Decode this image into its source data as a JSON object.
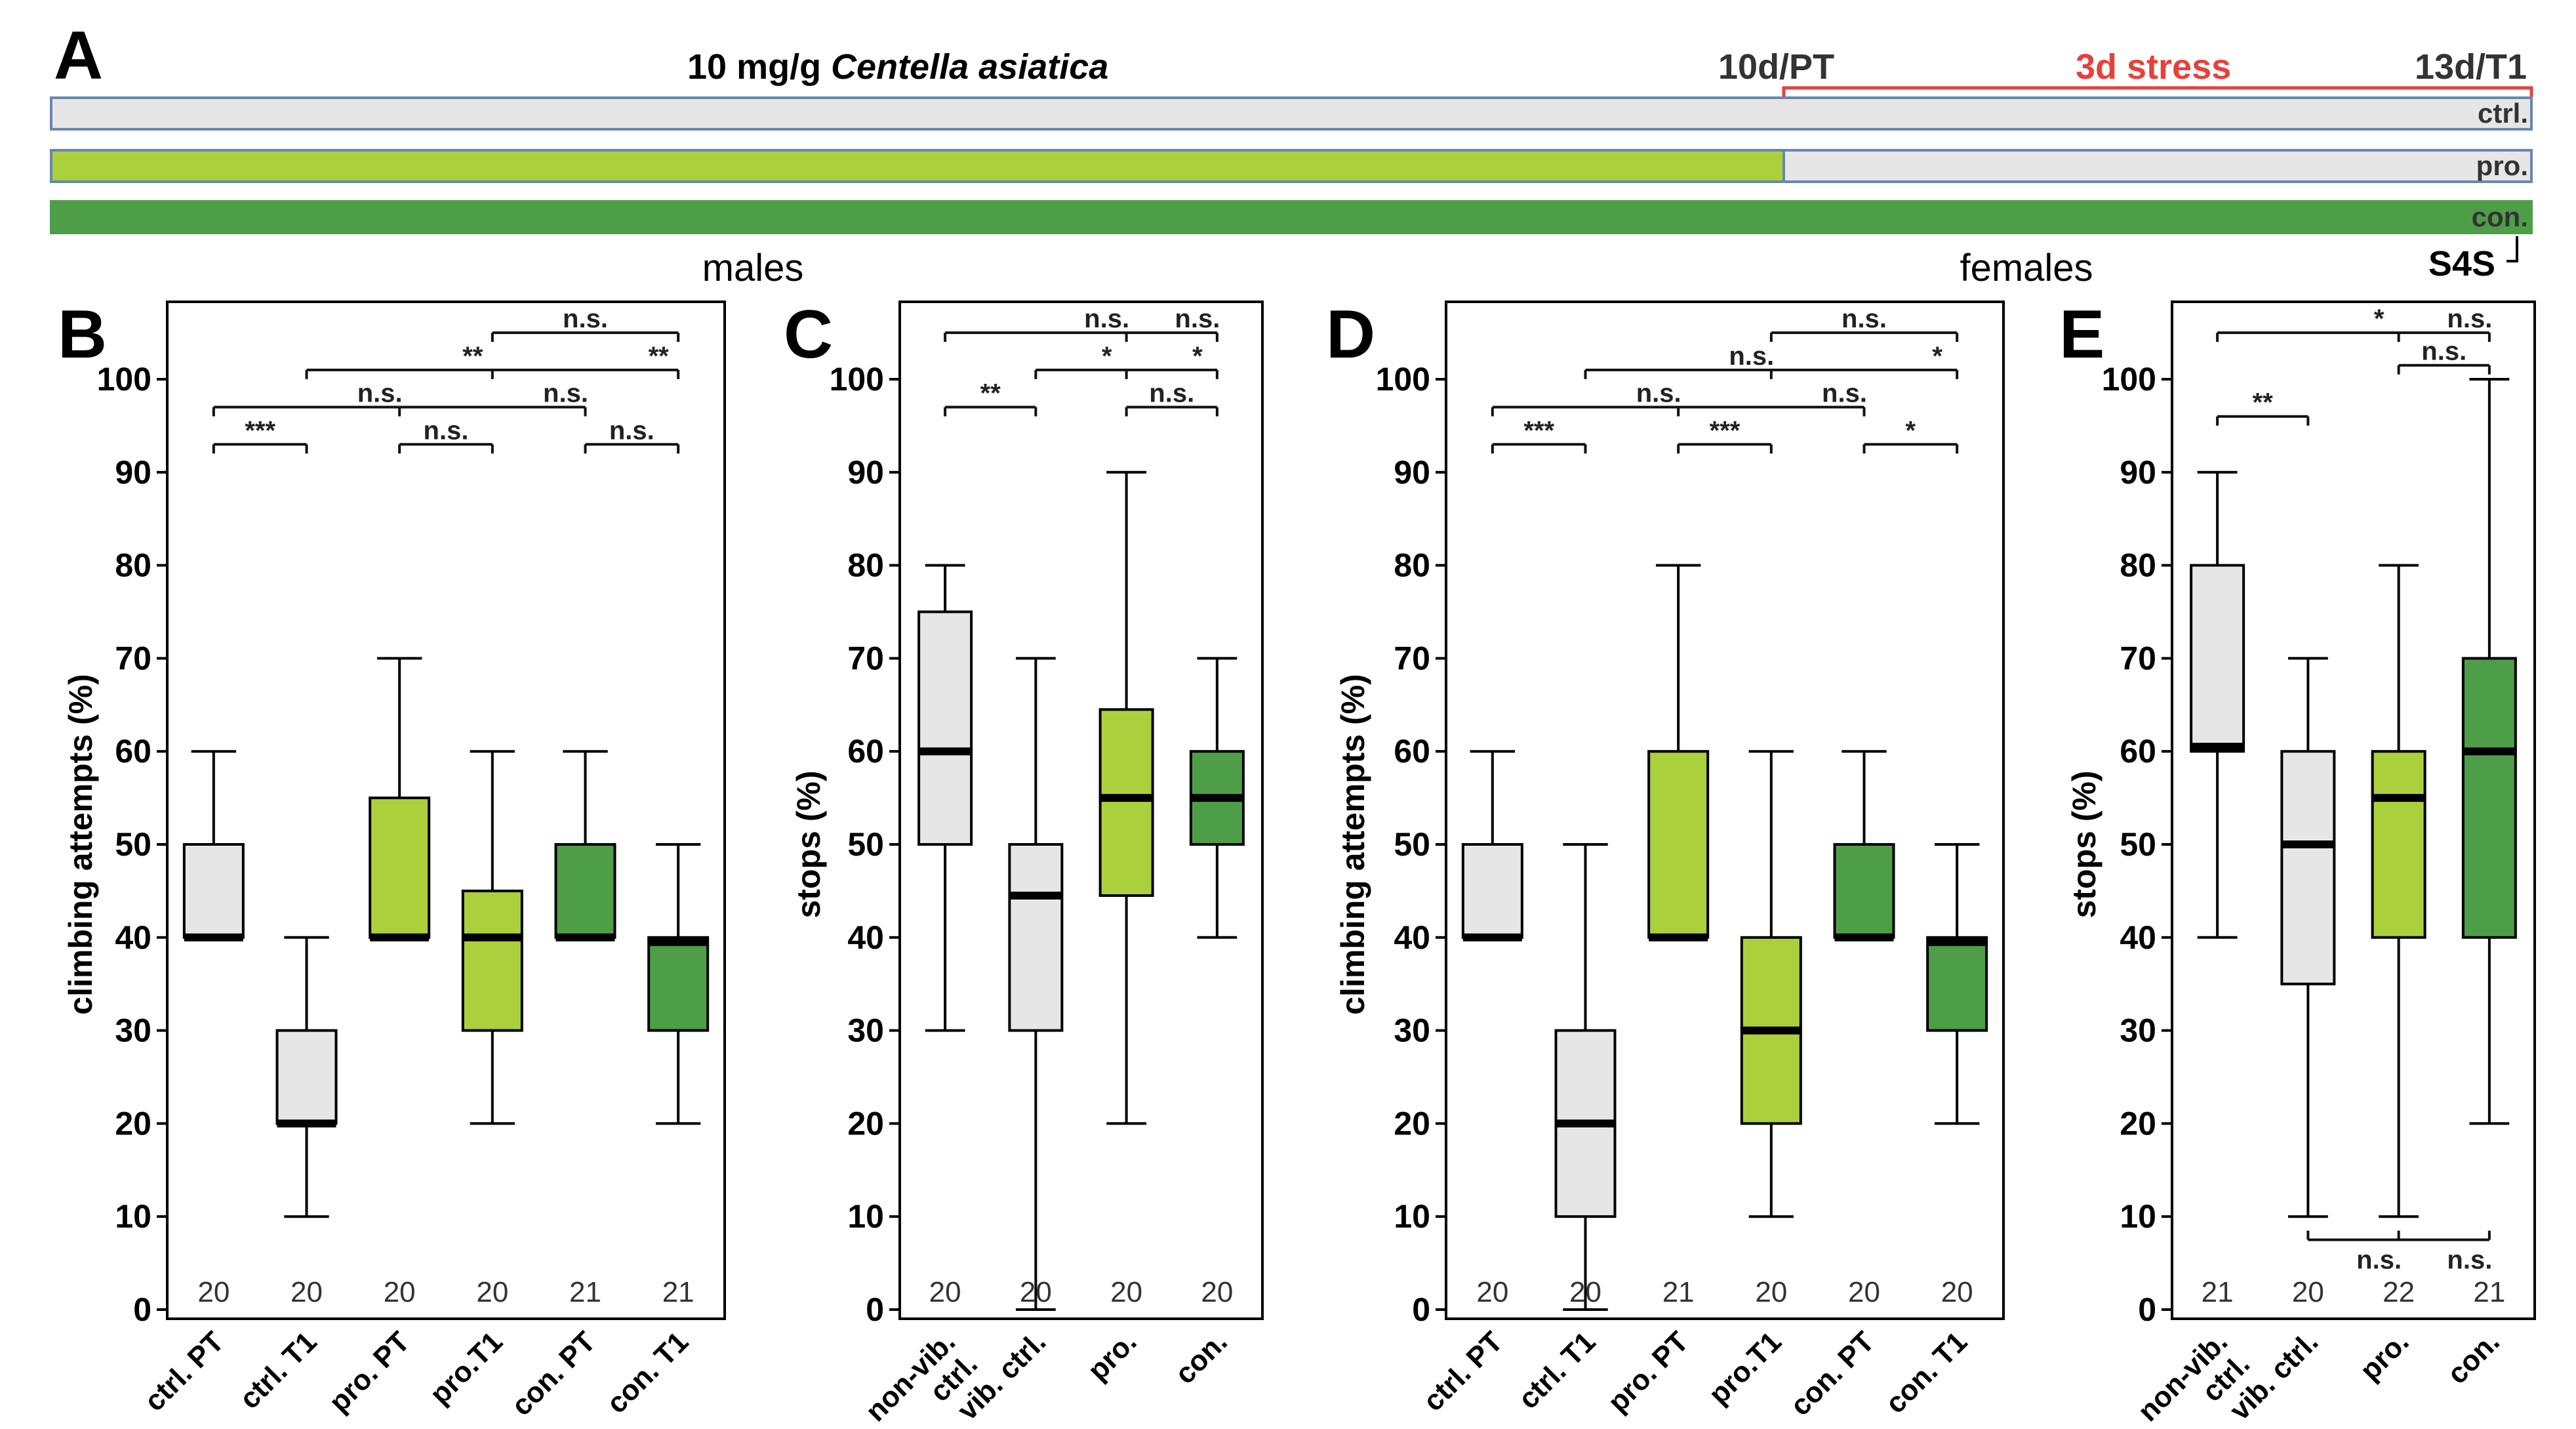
{
  "colors": {
    "ctrl": "#e6e6e6",
    "pro": "#acd03b",
    "con": "#4e9e48",
    "stress": "#e8403a",
    "bar_border": "#6a86b0",
    "axis": "#000000"
  },
  "timeline": {
    "panel": "A",
    "treatment_dose": "10 mg/g ",
    "treatment_species": "Centella asiatica",
    "pt_label": "10d/PT",
    "stress_label": "3d stress",
    "t1_label": "13d/T1",
    "bars": [
      {
        "label": "ctrl.",
        "group": "ctrl"
      },
      {
        "label": "pro.",
        "group": "pro"
      },
      {
        "label": "con.",
        "group": "con"
      }
    ],
    "s4s_label": "S4S"
  },
  "sections": {
    "males": "males",
    "females": "females"
  },
  "chart_data": [
    {
      "panel": "B",
      "type": "box",
      "ylabel": "climbing attempts (%)",
      "ylim": [
        0,
        105
      ],
      "yticks": [
        0,
        10,
        20,
        30,
        40,
        50,
        60,
        70,
        80,
        90,
        100
      ],
      "categories": [
        "ctrl. PT",
        "ctrl. T1",
        "pro. PT",
        "pro.T1",
        "con. PT",
        "con. T1"
      ],
      "groups": [
        "ctrl",
        "ctrl",
        "pro",
        "pro",
        "con",
        "con"
      ],
      "n": [
        "20",
        "20",
        "20",
        "20",
        "21",
        "21"
      ],
      "boxes": [
        {
          "min": 40,
          "q1": 40,
          "median": 40,
          "q3": 50,
          "max": 60
        },
        {
          "min": 10,
          "q1": 20,
          "median": 20,
          "q3": 30,
          "max": 40
        },
        {
          "min": 40,
          "q1": 40,
          "median": 40,
          "q3": 55,
          "max": 70
        },
        {
          "min": 20,
          "q1": 30,
          "median": 40,
          "q3": 45,
          "max": 60
        },
        {
          "min": 40,
          "q1": 40,
          "median": 40,
          "q3": 50,
          "max": 60
        },
        {
          "min": 20,
          "q1": 30,
          "median": 39.5,
          "q3": 40,
          "max": 50
        }
      ],
      "significance": [
        {
          "from": 0,
          "to": 1,
          "y": 93,
          "labels": [
            "***"
          ]
        },
        {
          "from": 2,
          "to": 3,
          "y": 93,
          "labels": [
            "n.s."
          ]
        },
        {
          "from": 4,
          "to": 5,
          "y": 93,
          "labels": [
            "n.s."
          ]
        },
        {
          "from": 0,
          "to": 4,
          "y": 97,
          "labels": [
            "n.s.",
            "n.s."
          ],
          "ticks": [
            2,
            4
          ]
        },
        {
          "from": 1,
          "to": 5,
          "y": 101,
          "labels": [
            "**",
            "**"
          ],
          "ticks": [
            3,
            5
          ]
        },
        {
          "from": 3,
          "to": 5,
          "y": 105,
          "labels": [
            "n.s."
          ]
        }
      ]
    },
    {
      "panel": "C",
      "type": "box",
      "ylabel": "stops (%)",
      "ylim": [
        0,
        105
      ],
      "yticks": [
        0,
        10,
        20,
        30,
        40,
        50,
        60,
        70,
        80,
        90,
        100
      ],
      "categories": [
        "non-vib. ctrl.",
        "vib. ctrl.",
        "pro.",
        "con."
      ],
      "groups": [
        "ctrl",
        "ctrl",
        "pro",
        "con"
      ],
      "n": [
        "20",
        "20",
        "20",
        "20"
      ],
      "boxes": [
        {
          "min": 30,
          "q1": 50,
          "median": 60,
          "q3": 75,
          "max": 80
        },
        {
          "min": 0,
          "q1": 30,
          "median": 44.5,
          "q3": 50,
          "max": 70
        },
        {
          "min": 20,
          "q1": 44.5,
          "median": 55,
          "q3": 64.5,
          "max": 90
        },
        {
          "min": 40,
          "q1": 50,
          "median": 55,
          "q3": 60,
          "max": 70
        }
      ],
      "significance": [
        {
          "from": 0,
          "to": 1,
          "y": 97,
          "labels": [
            "**"
          ]
        },
        {
          "from": 2,
          "to": 3,
          "y": 97,
          "labels": [
            "n.s."
          ]
        },
        {
          "from": 1,
          "to": 3,
          "y": 101,
          "labels": [
            "*",
            "*"
          ],
          "ticks": [
            2,
            3
          ]
        },
        {
          "from": 0,
          "to": 3,
          "y": 105,
          "labels": [
            "n.s.",
            "n.s."
          ],
          "ticks": [
            2,
            3
          ]
        }
      ]
    },
    {
      "panel": "D",
      "type": "box",
      "ylabel": "climbing attempts (%)",
      "ylim": [
        0,
        105
      ],
      "yticks": [
        0,
        10,
        20,
        30,
        40,
        50,
        60,
        70,
        80,
        90,
        100
      ],
      "categories": [
        "ctrl. PT",
        "ctrl. T1",
        "pro. PT",
        "pro.T1",
        "con. PT",
        "con. T1"
      ],
      "groups": [
        "ctrl",
        "ctrl",
        "pro",
        "pro",
        "con",
        "con"
      ],
      "n": [
        "20",
        "20",
        "21",
        "20",
        "20",
        "20"
      ],
      "boxes": [
        {
          "min": 40,
          "q1": 40,
          "median": 40,
          "q3": 50,
          "max": 60
        },
        {
          "min": 0,
          "q1": 10,
          "median": 20,
          "q3": 30,
          "max": 50
        },
        {
          "min": 40,
          "q1": 40,
          "median": 40,
          "q3": 60,
          "max": 80
        },
        {
          "min": 10,
          "q1": 20,
          "median": 30,
          "q3": 40,
          "max": 60
        },
        {
          "min": 40,
          "q1": 40,
          "median": 40,
          "q3": 50,
          "max": 60
        },
        {
          "min": 20,
          "q1": 30,
          "median": 39.5,
          "q3": 40,
          "max": 50
        }
      ],
      "significance": [
        {
          "from": 0,
          "to": 1,
          "y": 93,
          "labels": [
            "***"
          ]
        },
        {
          "from": 2,
          "to": 3,
          "y": 93,
          "labels": [
            "***"
          ]
        },
        {
          "from": 4,
          "to": 5,
          "y": 93,
          "labels": [
            "*"
          ]
        },
        {
          "from": 0,
          "to": 4,
          "y": 97,
          "labels": [
            "n.s.",
            "n.s."
          ],
          "ticks": [
            2,
            4
          ]
        },
        {
          "from": 1,
          "to": 5,
          "y": 101,
          "labels": [
            "n.s.",
            "*"
          ],
          "ticks": [
            3,
            5
          ]
        },
        {
          "from": 3,
          "to": 5,
          "y": 105,
          "labels": [
            "n.s."
          ]
        }
      ]
    },
    {
      "panel": "E",
      "type": "box",
      "ylabel": "stops (%)",
      "ylim": [
        0,
        105
      ],
      "yticks": [
        0,
        10,
        20,
        30,
        40,
        50,
        60,
        70,
        80,
        90,
        100
      ],
      "categories": [
        "non-vib. ctrl.",
        "vib. ctrl.",
        "pro.",
        "con."
      ],
      "groups": [
        "ctrl",
        "ctrl",
        "pro",
        "con"
      ],
      "n": [
        "21",
        "20",
        "22",
        "21"
      ],
      "boxes": [
        {
          "min": 40,
          "q1": 60,
          "median": 60.5,
          "q3": 80,
          "max": 90
        },
        {
          "min": 10,
          "q1": 35,
          "median": 50,
          "q3": 60,
          "max": 70
        },
        {
          "min": 10,
          "q1": 40,
          "median": 55,
          "q3": 60,
          "max": 80
        },
        {
          "min": 20,
          "q1": 40,
          "median": 60,
          "q3": 70,
          "max": 100
        }
      ],
      "significance": [
        {
          "from": 0,
          "to": 1,
          "y": 96,
          "labels": [
            "**"
          ]
        },
        {
          "from": 2,
          "to": 3,
          "y": 101.5,
          "labels": [
            "n.s."
          ]
        },
        {
          "from": 0,
          "to": 3,
          "y": 105,
          "labels": [
            "*",
            "n.s."
          ],
          "ticks": [
            2,
            3
          ]
        },
        {
          "from": 1,
          "to": 3,
          "y": 7.5,
          "below": true,
          "labels": [
            "n.s.",
            "n.s."
          ],
          "ticks": [
            2,
            3
          ]
        }
      ]
    }
  ]
}
